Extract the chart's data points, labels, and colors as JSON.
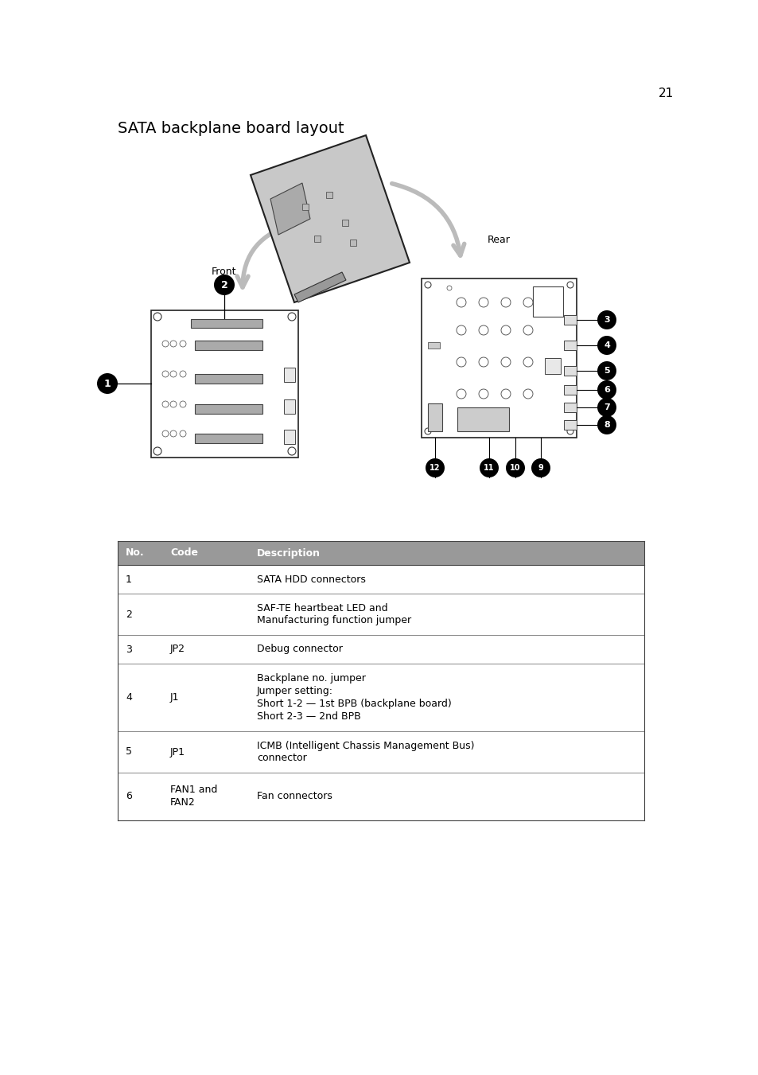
{
  "page_number": "21",
  "title": "SATA backplane board layout",
  "background_color": "#ffffff",
  "table_header_bg": "#999999",
  "table_header_color": "#ffffff",
  "table_rows": [
    {
      "no": "1",
      "code": "",
      "desc": "SATA HDD connectors"
    },
    {
      "no": "2",
      "code": "",
      "desc": "SAF-TE heartbeat LED and\nManufacturing function jumper"
    },
    {
      "no": "3",
      "code": "JP2",
      "desc": "Debug connector"
    },
    {
      "no": "4",
      "code": "J1",
      "desc": "Backplane no. jumper\nJumper setting:\nShort 1-2 — 1st BPB (backplane board)\nShort 2-3 — 2nd BPB"
    },
    {
      "no": "5",
      "code": "JP1",
      "desc": "ICMB (Intelligent Chassis Management Bus)\nconnector"
    },
    {
      "no": "6",
      "code": "FAN1 and\nFAN2",
      "desc": "Fan connectors"
    }
  ],
  "front_label": "Front",
  "rear_label": "Rear",
  "label_font_size": 9,
  "title_font_size": 14
}
